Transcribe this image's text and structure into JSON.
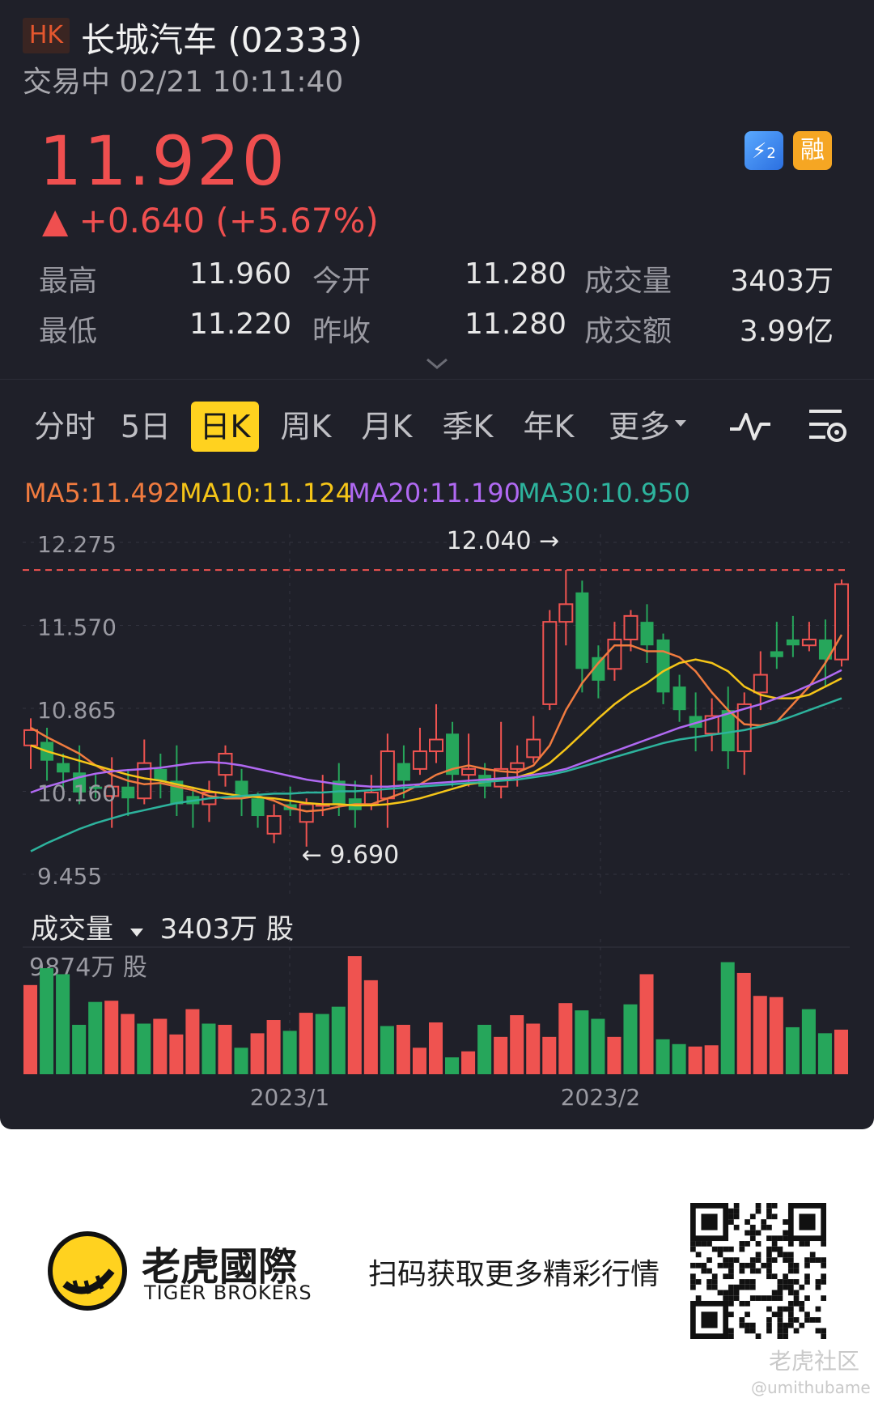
{
  "header": {
    "market": "HK",
    "title": "长城汽车 (02333)",
    "status": "交易中 02/21 10:11:40"
  },
  "quote": {
    "price": "11.920",
    "change": "▲ +0.640 (+5.67%)",
    "badges": [
      "2",
      "融"
    ],
    "stats": [
      {
        "label": "最高",
        "value": "11.960"
      },
      {
        "label": "今开",
        "value": "11.280"
      },
      {
        "label": "成交量",
        "value": "3403万"
      },
      {
        "label": "最低",
        "value": "11.220"
      },
      {
        "label": "昨收",
        "value": "11.280"
      },
      {
        "label": "成交额",
        "value": "3.99亿"
      }
    ]
  },
  "tabs": [
    {
      "label": "分时",
      "active": false
    },
    {
      "label": "5日",
      "active": false
    },
    {
      "label": "日K",
      "active": true
    },
    {
      "label": "周K",
      "active": false
    },
    {
      "label": "月K",
      "active": false
    },
    {
      "label": "季K",
      "active": false
    },
    {
      "label": "年K",
      "active": false
    },
    {
      "label": "更多",
      "active": false
    }
  ],
  "icons": [
    "chevron-down-icon",
    "indicator-wave-icon",
    "settings-icon",
    "dropdown-caret-icon",
    "qr-code-icon",
    "tiger-logo-icon"
  ],
  "ma": [
    {
      "label": "MA5:11.492",
      "color": "#f07b3f"
    },
    {
      "label": "MA10:11.124",
      "color": "#f5c518"
    },
    {
      "label": "MA20:11.190",
      "color": "#b069f2"
    },
    {
      "label": "MA30:10.950",
      "color": "#2db39d"
    }
  ],
  "colors": {
    "up": "#ef5350",
    "down": "#26a65b",
    "background": "#1f2029",
    "accent": "#ffd21f"
  },
  "chart_data": [
    {
      "type": "candlestick",
      "ylim": [
        9.455,
        12.275
      ],
      "y_ticks": [
        "12.275",
        "11.570",
        "10.865",
        "10.160",
        "9.455"
      ],
      "x_ticks": [
        "2023/1",
        "2023/2"
      ],
      "reference_line": 12.04,
      "annotations": [
        {
          "label": "12.040 →",
          "value": 12.04
        },
        {
          "label": "← 9.690",
          "value": 9.69
        }
      ],
      "candles": [
        {
          "o": 10.55,
          "c": 10.68,
          "h": 10.78,
          "l": 10.35
        },
        {
          "o": 10.58,
          "c": 10.42,
          "h": 10.7,
          "l": 10.25
        },
        {
          "o": 10.4,
          "c": 10.32,
          "h": 10.48,
          "l": 10.1
        },
        {
          "o": 10.32,
          "c": 10.15,
          "h": 10.55,
          "l": 10.05
        },
        {
          "o": 10.2,
          "c": 10.18,
          "h": 10.3,
          "l": 10.1
        },
        {
          "o": 10.12,
          "c": 10.2,
          "h": 10.45,
          "l": 9.85
        },
        {
          "o": 10.2,
          "c": 10.1,
          "h": 10.35,
          "l": 9.95
        },
        {
          "o": 10.1,
          "c": 10.4,
          "h": 10.6,
          "l": 10.05
        },
        {
          "o": 10.35,
          "c": 10.25,
          "h": 10.48,
          "l": 10.1
        },
        {
          "o": 10.25,
          "c": 10.05,
          "h": 10.55,
          "l": 9.95
        },
        {
          "o": 10.12,
          "c": 10.05,
          "h": 10.2,
          "l": 9.85
        },
        {
          "o": 10.05,
          "c": 10.15,
          "h": 10.25,
          "l": 9.9
        },
        {
          "o": 10.3,
          "c": 10.48,
          "h": 10.55,
          "l": 10.2
        },
        {
          "o": 10.25,
          "c": 10.1,
          "h": 10.35,
          "l": 9.95
        },
        {
          "o": 10.1,
          "c": 9.95,
          "h": 10.15,
          "l": 9.85
        },
        {
          "o": 9.8,
          "c": 9.95,
          "h": 10.05,
          "l": 9.72
        },
        {
          "o": 10.05,
          "c": 10.0,
          "h": 10.2,
          "l": 9.95
        },
        {
          "o": 9.9,
          "c": 10.05,
          "h": 10.1,
          "l": 9.69
        },
        {
          "o": 10.05,
          "c": 10.05,
          "h": 10.3,
          "l": 9.95
        },
        {
          "o": 10.25,
          "c": 10.05,
          "h": 10.4,
          "l": 9.95
        },
        {
          "o": 10.1,
          "c": 10.0,
          "h": 10.25,
          "l": 9.85
        },
        {
          "o": 10.05,
          "c": 10.15,
          "h": 10.3,
          "l": 10.0
        },
        {
          "o": 10.1,
          "c": 10.5,
          "h": 10.65,
          "l": 9.85
        },
        {
          "o": 10.4,
          "c": 10.25,
          "h": 10.55,
          "l": 10.1
        },
        {
          "o": 10.35,
          "c": 10.5,
          "h": 10.7,
          "l": 10.3
        },
        {
          "o": 10.5,
          "c": 10.6,
          "h": 10.9,
          "l": 10.4
        },
        {
          "o": 10.65,
          "c": 10.3,
          "h": 10.75,
          "l": 10.2
        },
        {
          "o": 10.3,
          "c": 10.35,
          "h": 10.65,
          "l": 10.2
        },
        {
          "o": 10.3,
          "c": 10.2,
          "h": 10.4,
          "l": 10.1
        },
        {
          "o": 10.2,
          "c": 10.35,
          "h": 10.75,
          "l": 10.1
        },
        {
          "o": 10.35,
          "c": 10.4,
          "h": 10.55,
          "l": 10.2
        },
        {
          "o": 10.45,
          "c": 10.6,
          "h": 10.8,
          "l": 10.4
        },
        {
          "o": 10.9,
          "c": 11.6,
          "h": 11.7,
          "l": 10.85
        },
        {
          "o": 11.6,
          "c": 11.75,
          "h": 12.04,
          "l": 11.4
        },
        {
          "o": 11.85,
          "c": 11.2,
          "h": 11.95,
          "l": 11.0
        },
        {
          "o": 11.3,
          "c": 11.1,
          "h": 11.4,
          "l": 10.95
        },
        {
          "o": 11.2,
          "c": 11.45,
          "h": 11.6,
          "l": 11.1
        },
        {
          "o": 11.45,
          "c": 11.65,
          "h": 11.7,
          "l": 11.35
        },
        {
          "o": 11.6,
          "c": 11.4,
          "h": 11.75,
          "l": 11.25
        },
        {
          "o": 11.45,
          "c": 11.0,
          "h": 11.5,
          "l": 10.9
        },
        {
          "o": 11.05,
          "c": 10.85,
          "h": 11.15,
          "l": 10.75
        },
        {
          "o": 10.8,
          "c": 10.7,
          "h": 11.0,
          "l": 10.5
        },
        {
          "o": 10.65,
          "c": 10.8,
          "h": 10.95,
          "l": 10.5
        },
        {
          "o": 10.85,
          "c": 10.5,
          "h": 11.05,
          "l": 10.35
        },
        {
          "o": 10.5,
          "c": 10.9,
          "h": 11.0,
          "l": 10.3
        },
        {
          "o": 11.0,
          "c": 11.15,
          "h": 11.35,
          "l": 10.85
        },
        {
          "o": 11.35,
          "c": 11.3,
          "h": 11.6,
          "l": 11.2
        },
        {
          "o": 11.45,
          "c": 11.4,
          "h": 11.65,
          "l": 11.3
        },
        {
          "o": 11.4,
          "c": 11.45,
          "h": 11.6,
          "l": 11.35
        },
        {
          "o": 11.45,
          "c": 11.28,
          "h": 11.62,
          "l": 11.05
        },
        {
          "o": 11.28,
          "c": 11.92,
          "h": 11.96,
          "l": 11.22
        }
      ],
      "ma_series": [
        {
          "name": "MA5",
          "color": "#f07b3f",
          "values": [
            10.7,
            10.62,
            10.55,
            10.48,
            10.38,
            10.3,
            10.25,
            10.22,
            10.23,
            10.2,
            10.17,
            10.12,
            10.1,
            10.1,
            10.12,
            10.08,
            10.02,
            9.99,
            10.0,
            10.03,
            10.05,
            10.05,
            10.1,
            10.15,
            10.22,
            10.3,
            10.35,
            10.38,
            10.35,
            10.33,
            10.32,
            10.38,
            10.55,
            10.85,
            11.08,
            11.25,
            11.4,
            11.4,
            11.35,
            11.35,
            11.3,
            11.18,
            11.0,
            10.85,
            10.73,
            10.72,
            10.75,
            10.9,
            11.05,
            11.25,
            11.49
          ]
        },
        {
          "name": "MA10",
          "color": "#f5c518",
          "values": [
            10.55,
            10.5,
            10.46,
            10.42,
            10.38,
            10.34,
            10.3,
            10.27,
            10.25,
            10.22,
            10.19,
            10.16,
            10.14,
            10.12,
            10.11,
            10.1,
            10.08,
            10.06,
            10.05,
            10.05,
            10.04,
            10.04,
            10.05,
            10.07,
            10.1,
            10.14,
            10.18,
            10.22,
            10.24,
            10.26,
            10.28,
            10.32,
            10.4,
            10.52,
            10.65,
            10.78,
            10.9,
            11.0,
            11.08,
            11.18,
            11.25,
            11.28,
            11.25,
            11.18,
            11.05,
            10.98,
            10.95,
            10.95,
            10.98,
            11.05,
            11.12
          ]
        },
        {
          "name": "MA20",
          "color": "#b069f2",
          "values": [
            10.15,
            10.2,
            10.24,
            10.28,
            10.31,
            10.33,
            10.34,
            10.35,
            10.36,
            10.38,
            10.4,
            10.41,
            10.4,
            10.38,
            10.35,
            10.32,
            10.29,
            10.26,
            10.24,
            10.22,
            10.21,
            10.2,
            10.2,
            10.21,
            10.22,
            10.23,
            10.24,
            10.25,
            10.26,
            10.27,
            10.28,
            10.3,
            10.32,
            10.35,
            10.4,
            10.45,
            10.5,
            10.55,
            10.6,
            10.65,
            10.7,
            10.74,
            10.78,
            10.82,
            10.86,
            10.9,
            10.95,
            11.0,
            11.06,
            11.12,
            11.19
          ]
        },
        {
          "name": "MA30",
          "color": "#2db39d",
          "values": [
            9.65,
            9.72,
            9.78,
            9.84,
            9.89,
            9.93,
            9.97,
            10.0,
            10.03,
            10.06,
            10.08,
            10.1,
            10.11,
            10.12,
            10.13,
            10.14,
            10.14,
            10.15,
            10.15,
            10.16,
            10.16,
            10.17,
            10.18,
            10.19,
            10.2,
            10.21,
            10.22,
            10.23,
            10.24,
            10.25,
            10.26,
            10.28,
            10.3,
            10.33,
            10.37,
            10.41,
            10.45,
            10.49,
            10.53,
            10.57,
            10.6,
            10.62,
            10.64,
            10.66,
            10.68,
            10.71,
            10.75,
            10.8,
            10.85,
            10.9,
            10.95
          ]
        }
      ]
    },
    {
      "type": "bar",
      "title": "成交量",
      "unit": "万股",
      "current_label": "3403万 股",
      "max_label": "9874万 股",
      "x_ticks": [
        "2023/1",
        "2023/2"
      ],
      "values": [
        7400,
        8800,
        8300,
        4100,
        6000,
        6100,
        5000,
        4200,
        4600,
        3300,
        5400,
        4200,
        4100,
        2200,
        3400,
        4500,
        3600,
        5100,
        5000,
        5600,
        9800,
        7800,
        4000,
        4100,
        2200,
        4300,
        1400,
        1900,
        4100,
        3100,
        4900,
        4200,
        3100,
        5900,
        5300,
        4600,
        3100,
        5800,
        8300,
        2900,
        2500,
        2300,
        2400,
        9300,
        8400,
        6500,
        6400,
        3900,
        5400,
        3403,
        3700
      ],
      "up": [
        true,
        false,
        false,
        false,
        false,
        true,
        true,
        false,
        true,
        true,
        true,
        false,
        true,
        false,
        true,
        true,
        false,
        true,
        false,
        false,
        true,
        true,
        false,
        true,
        true,
        true,
        false,
        true,
        false,
        true,
        true,
        true,
        true,
        true,
        false,
        false,
        true,
        false,
        true,
        false,
        false,
        true,
        true,
        false,
        true,
        true,
        true,
        false,
        false,
        false,
        true
      ]
    }
  ],
  "footer": {
    "brand": "老虎國際",
    "brand_en": "TIGER BROKERS",
    "cta": "扫码获取更多精彩行情",
    "watermark": "老虎社区",
    "handle": "@umithubame"
  }
}
